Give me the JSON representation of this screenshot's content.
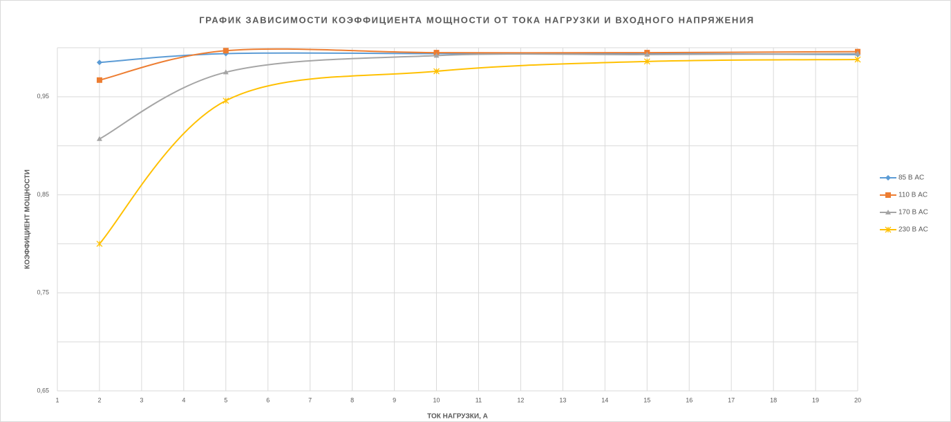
{
  "chart_data": {
    "type": "line",
    "title": "ГРАФИК ЗАВИСИМОСТИ КОЭФФИЦИЕНТА МОЩНОСТИ ОТ ТОКА НАГРУЗКИ И ВХОДНОГО НАПРЯЖЕНИЯ",
    "x_label": "ТОК НАГРУЗКИ, А",
    "y_label": "КОЭФФИЦИЕНТ МОЩНОСТИ",
    "x": [
      2,
      5,
      10,
      15,
      20
    ],
    "series": [
      {
        "name": "85 В AC",
        "color": "#5b9bd5",
        "marker": "diamond",
        "values": [
          0.985,
          0.994,
          0.994,
          0.994,
          0.993
        ]
      },
      {
        "name": "110 В AC",
        "color": "#ed7d31",
        "marker": "square",
        "values": [
          0.967,
          0.997,
          0.995,
          0.995,
          0.996
        ]
      },
      {
        "name": "170 В AC",
        "color": "#a5a5a5",
        "marker": "triangle",
        "values": [
          0.907,
          0.975,
          0.992,
          0.993,
          0.994
        ]
      },
      {
        "name": "230 В AC",
        "color": "#ffc000",
        "marker": "star",
        "values": [
          0.8,
          0.946,
          0.976,
          0.986,
          0.988
        ]
      }
    ],
    "xlim": [
      1,
      20
    ],
    "xticks": [
      1,
      2,
      3,
      4,
      5,
      6,
      7,
      8,
      9,
      10,
      11,
      12,
      13,
      14,
      15,
      16,
      17,
      18,
      19,
      20
    ],
    "ylim": [
      0.65,
      1.0
    ],
    "yticks": [
      {
        "value": 0.65,
        "label": "0,65"
      },
      {
        "value": 0.75,
        "label": "0,75"
      },
      {
        "value": 0.85,
        "label": "0,85"
      },
      {
        "value": 0.95,
        "label": "0,95"
      }
    ],
    "y_gridlines": [
      0.7,
      0.8,
      0.9,
      1.0
    ],
    "grid": true,
    "smooth": true,
    "legend": "right"
  }
}
